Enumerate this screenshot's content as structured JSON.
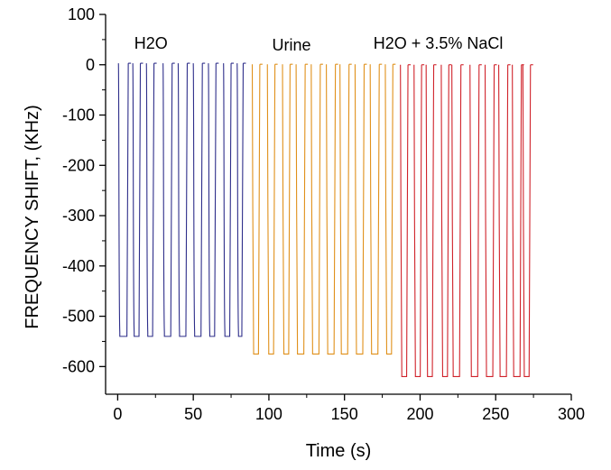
{
  "chart_data": {
    "type": "line",
    "xlabel": "Time (s)",
    "ylabel": "FREQUENCY SHIFT, (KHz)",
    "xlim": [
      -8,
      300
    ],
    "ylim": [
      -655,
      100
    ],
    "x_ticks": [
      0,
      50,
      100,
      150,
      200,
      250,
      300
    ],
    "y_ticks": [
      100,
      0,
      -100,
      -200,
      -300,
      -400,
      -500,
      -600
    ],
    "x_tick_labels": [
      "0",
      "50",
      "100",
      "150",
      "200",
      "250",
      "300"
    ],
    "y_tick_labels": [
      "100",
      "0",
      "-100",
      "-200",
      "-300",
      "-400",
      "-500",
      "-600"
    ],
    "grid": false,
    "annotations": [
      {
        "text": "H2O",
        "x": 22,
        "y": 43
      },
      {
        "text": "Urine",
        "x": 115,
        "y": 39
      },
      {
        "text": "H2O + 3.5% NaCl",
        "x": 212,
        "y": 43
      }
    ],
    "series": [
      {
        "color": "#2e2e8a",
        "low": -540,
        "high": 3,
        "pulses": [
          [
            0.5,
            7
          ],
          [
            10,
            15
          ],
          [
            19,
            24
          ],
          [
            30,
            36
          ],
          [
            40,
            46
          ],
          [
            50,
            56
          ],
          [
            60,
            65
          ],
          [
            70,
            75
          ],
          [
            79,
            83
          ]
        ]
      },
      {
        "color": "#e0901a",
        "low": -575,
        "high": 1,
        "pulses": [
          [
            89,
            94
          ],
          [
            99,
            104
          ],
          [
            109,
            114
          ],
          [
            118,
            124
          ],
          [
            128,
            134
          ],
          [
            138,
            144
          ],
          [
            147,
            153
          ],
          [
            157,
            163
          ],
          [
            167,
            173
          ],
          [
            177,
            182
          ]
        ]
      },
      {
        "color": "#d0222a",
        "low": -620,
        "high": 0,
        "pulses": [
          [
            187,
            192
          ],
          [
            196,
            201
          ],
          [
            204,
            209
          ],
          [
            214,
            219
          ],
          [
            221,
            227
          ],
          [
            233,
            239
          ],
          [
            243,
            249
          ],
          [
            252,
            258
          ],
          [
            261,
            267
          ],
          [
            268,
            273
          ]
        ]
      }
    ]
  }
}
